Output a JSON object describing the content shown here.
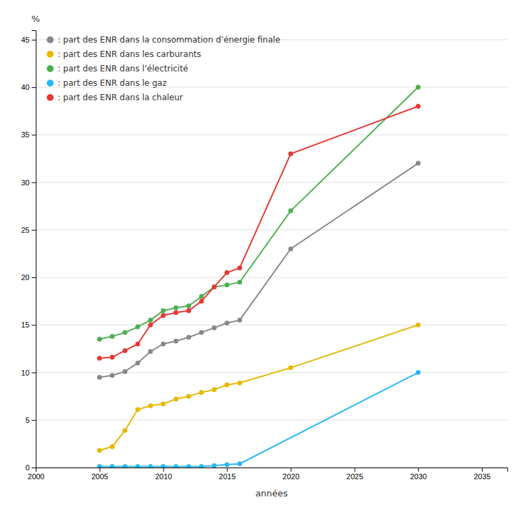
{
  "chart_data": {
    "type": "line",
    "xlabel": "années",
    "ylabel": "%",
    "xlim": [
      2000,
      2037
    ],
    "ylim": [
      0,
      46
    ],
    "xticks": [
      2000,
      2005,
      2010,
      2015,
      2020,
      2025,
      2030,
      2035
    ],
    "yticks": [
      0,
      5,
      10,
      15,
      20,
      25,
      30,
      35,
      40,
      45
    ],
    "grid": "y",
    "legend": "upper left",
    "marker": "circle",
    "series": [
      {
        "name": ": part des ENR dans la consommation d’énergie finale",
        "color": "#888888",
        "x": [
          2005,
          2006,
          2007,
          2008,
          2009,
          2010,
          2011,
          2012,
          2013,
          2014,
          2015,
          2016,
          2020,
          2030
        ],
        "values": [
          9.5,
          9.7,
          10.1,
          11.0,
          12.2,
          13.0,
          13.3,
          13.7,
          14.2,
          14.7,
          15.2,
          15.5,
          23.0,
          32.0
        ]
      },
      {
        "name": ": part des ENR dans les carburants",
        "color": "#e6b800",
        "x": [
          2005,
          2006,
          2007,
          2008,
          2009,
          2010,
          2011,
          2012,
          2013,
          2014,
          2015,
          2016,
          2020,
          2030
        ],
        "values": [
          1.8,
          2.2,
          3.9,
          6.1,
          6.5,
          6.7,
          7.2,
          7.5,
          7.9,
          8.2,
          8.7,
          8.9,
          10.5,
          15.0
        ]
      },
      {
        "name": ": part des ENR dans l’électricité",
        "color": "#4caf50",
        "x": [
          2005,
          2006,
          2007,
          2008,
          2009,
          2010,
          2011,
          2012,
          2013,
          2014,
          2015,
          2016,
          2020,
          2030
        ],
        "values": [
          13.5,
          13.8,
          14.2,
          14.8,
          15.5,
          16.5,
          16.8,
          17.0,
          18.0,
          19.0,
          19.2,
          19.5,
          27.0,
          40.0
        ]
      },
      {
        "name": ": part des ENR dans le gaz",
        "color": "#29b6f6",
        "x": [
          2005,
          2006,
          2007,
          2008,
          2009,
          2010,
          2011,
          2012,
          2013,
          2014,
          2015,
          2016,
          2030
        ],
        "values": [
          0.1,
          0.1,
          0.1,
          0.1,
          0.1,
          0.1,
          0.1,
          0.1,
          0.1,
          0.2,
          0.3,
          0.4,
          10.0
        ]
      },
      {
        "name": ": part des ENR dans la chaleur",
        "color": "#e53935",
        "x": [
          2005,
          2006,
          2007,
          2008,
          2009,
          2010,
          2011,
          2012,
          2013,
          2014,
          2015,
          2016,
          2020,
          2030
        ],
        "values": [
          11.5,
          11.6,
          12.3,
          13.0,
          15.0,
          16.0,
          16.3,
          16.5,
          17.5,
          19.0,
          20.5,
          21.0,
          33.0,
          38.0
        ]
      }
    ]
  }
}
